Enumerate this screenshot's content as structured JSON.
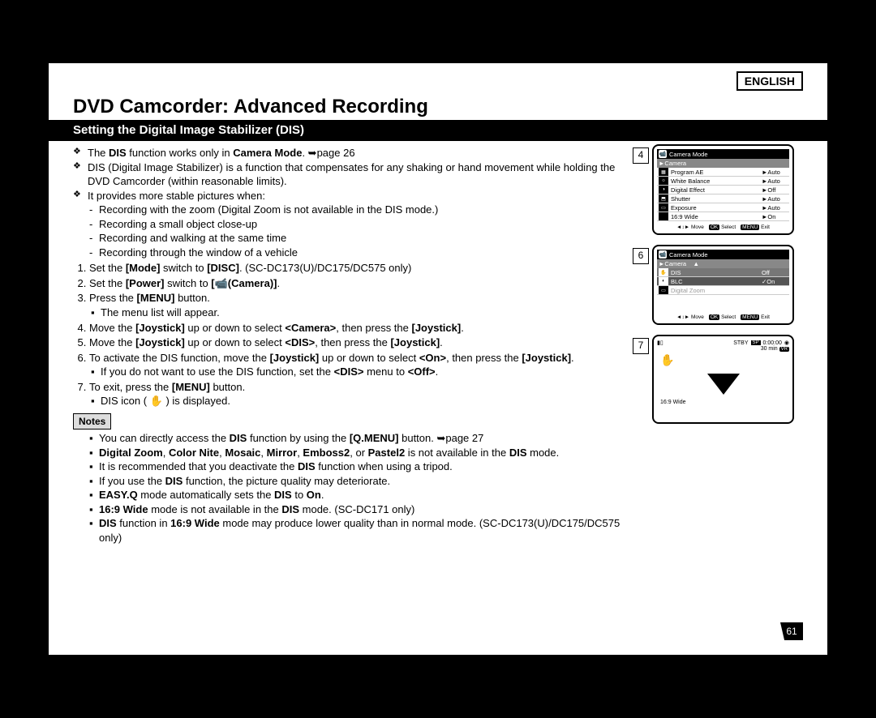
{
  "language": "ENGLISH",
  "title": "DVD Camcorder: Advanced Recording",
  "subtitle": "Setting the Digital Image Stabilizer (DIS)",
  "page_number": "61",
  "intro": {
    "line1_pre": "The ",
    "line1_b1": "DIS",
    "line1_mid": " function works only in ",
    "line1_b2": "Camera Mode",
    "line1_post": ". ➥page 26",
    "line2": "DIS (Digital Image Stabilizer) is a function that compensates for any shaking or hand movement while holding the DVD Camcorder (within reasonable limits).",
    "line3": "It provides more stable pictures when:",
    "dash1": "Recording with the zoom (Digital Zoom is not available in the DIS mode.)",
    "dash2": "Recording a small object close-up",
    "dash3": "Recording and walking at the same time",
    "dash4": "Recording through the window of a vehicle"
  },
  "steps": {
    "s1_pre": "Set the ",
    "s1_b1": "[Mode]",
    "s1_mid": " switch to ",
    "s1_b2": "[DISC]",
    "s1_post": ". (SC-DC173(U)/DC175/DC575 only)",
    "s2_pre": "Set the ",
    "s2_b1": "[Power]",
    "s2_mid": " switch to ",
    "s2_b2": "[📹(Camera)]",
    "s2_post": ".",
    "s3_pre": "Press the ",
    "s3_b1": "[MENU]",
    "s3_post": " button.",
    "s3_sub": "The menu list will appear.",
    "s4_pre": "Move the ",
    "s4_b1": "[Joystick]",
    "s4_mid": " up or down to select ",
    "s4_b2": "<Camera>",
    "s4_mid2": ", then press the ",
    "s4_b3": "[Joystick]",
    "s4_post": ".",
    "s5_pre": "Move the ",
    "s5_b1": "[Joystick]",
    "s5_mid": " up or down to select ",
    "s5_b2": "<DIS>",
    "s5_mid2": ", then press the ",
    "s5_b3": "[Joystick]",
    "s5_post": ".",
    "s6_pre": "To activate the DIS function, move the ",
    "s6_b1": "[Joystick]",
    "s6_mid": " up or down to select ",
    "s6_b2": "<On>",
    "s6_mid2": ", then press the ",
    "s6_b3": "[Joystick]",
    "s6_post": ".",
    "s6_sub_pre": "If you do not want to use the DIS function, set the ",
    "s6_sub_b1": "<DIS>",
    "s6_sub_mid": " menu to ",
    "s6_sub_b2": "<Off>",
    "s6_sub_post": ".",
    "s7_pre": "To exit, press the ",
    "s7_b1": "[MENU]",
    "s7_post": " button.",
    "s7_sub": "DIS icon ( ✋ ) is displayed."
  },
  "notes_label": "Notes",
  "notes": {
    "n1_pre": "You can directly access the ",
    "n1_b1": "DIS",
    "n1_mid": " function by using the ",
    "n1_b2": "[Q.MENU]",
    "n1_post": " button. ➥page 27",
    "n2_b1": "Digital Zoom",
    "n2_s1": ", ",
    "n2_b2": "Color Nite",
    "n2_s2": ", ",
    "n2_b3": "Mosaic",
    "n2_s3": ", ",
    "n2_b4": "Mirror",
    "n2_s4": ", ",
    "n2_b5": "Emboss2",
    "n2_s5": ", or ",
    "n2_b6": "Pastel2",
    "n2_mid": " is not available in the ",
    "n2_b7": "DIS",
    "n2_post": " mode.",
    "n3_pre": "It is recommended that you deactivate the ",
    "n3_b1": "DIS",
    "n3_post": " function when using a tripod.",
    "n4_pre": "If you use the ",
    "n4_b1": "DIS",
    "n4_post": " function, the picture quality may deteriorate.",
    "n5_b1": "EASY.Q",
    "n5_mid": " mode automatically sets the ",
    "n5_b2": "DIS",
    "n5_mid2": " to ",
    "n5_b3": "On",
    "n5_post": ".",
    "n6_b1": "16:9 Wide",
    "n6_mid": " mode is not available in the ",
    "n6_b2": "DIS",
    "n6_post": " mode. (SC-DC171 only)",
    "n7_b1": "DIS",
    "n7_mid": " function in ",
    "n7_b2": "16:9 Wide",
    "n7_post": " mode may produce lower quality than in normal mode. (SC-DC173(U)/DC175/DC575 only)"
  },
  "screens": {
    "s4_num": "4",
    "s6_num": "6",
    "s7_num": "7",
    "menu_title": "Camera Mode",
    "menu_sub": "►Camera",
    "footer_move": "Move",
    "footer_select": "Select",
    "footer_exit": "Exit",
    "footer_ok": "OK",
    "footer_menu": "MENU",
    "s4_rows": [
      {
        "icon": "▦",
        "label": "Program AE",
        "val": "►Auto"
      },
      {
        "icon": "☼",
        "label": "White Balance",
        "val": "►Auto"
      },
      {
        "icon": "◑",
        "label": "Digital Effect",
        "val": "►Off"
      },
      {
        "icon": "⬒",
        "label": "Shutter",
        "val": "►Auto"
      },
      {
        "icon": "▭",
        "label": "Exposure",
        "val": "►Auto"
      },
      {
        "icon": "",
        "label": "16:9 Wide",
        "val": "►On"
      }
    ],
    "s6_rows": [
      {
        "icon": "✋",
        "label": "DIS",
        "val": "Off",
        "sel": true
      },
      {
        "icon": "◐",
        "label": "BLC",
        "val": "✓On",
        "sel2": true
      },
      {
        "icon": "▭",
        "label": "Digital Zoom",
        "val": "",
        "dim": true
      }
    ],
    "s7": {
      "stby": "STBY",
      "sp": "SP",
      "time": "0:00:00",
      "min": "30 min",
      "vr": "VR",
      "wide": "16:9 Wide"
    }
  }
}
